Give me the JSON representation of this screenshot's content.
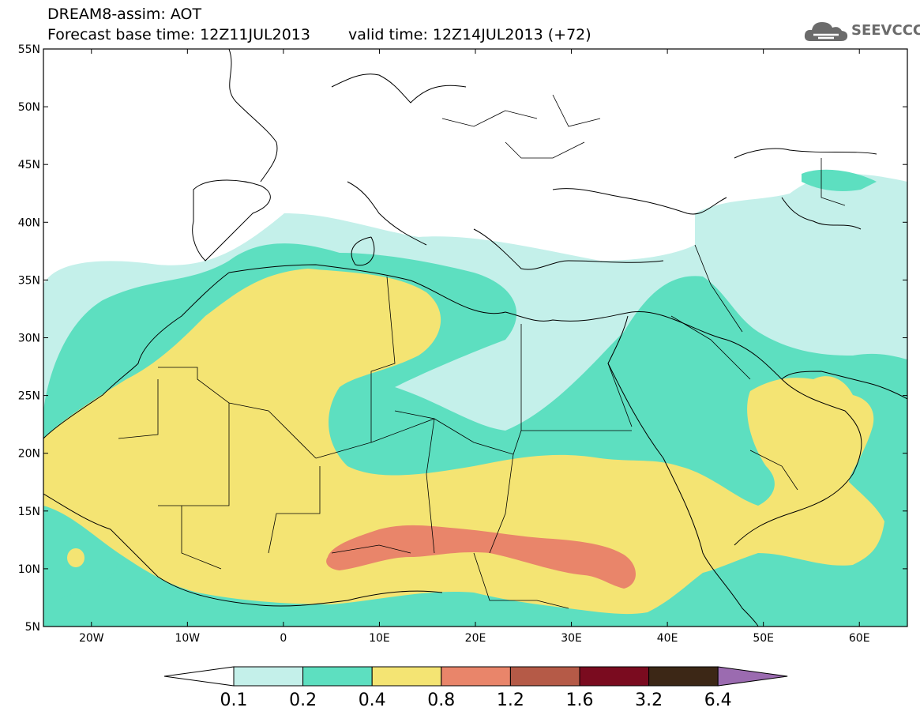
{
  "header": {
    "line1": "DREAM8-assim: AOT",
    "base_time": "Forecast base time: 12Z11JUL2013",
    "valid_time": "valid time: 12Z14JUL2013 (+72)"
  },
  "logo": {
    "text": "SEEVCCC",
    "icon": "cloud-icon"
  },
  "map": {
    "lon_range": [
      -25,
      65
    ],
    "lat_range": [
      5,
      55
    ],
    "lat_ticks": [
      "5N",
      "10N",
      "15N",
      "20N",
      "25N",
      "30N",
      "35N",
      "40N",
      "45N",
      "50N",
      "55N"
    ],
    "lon_ticks": [
      "20W",
      "10W",
      "0",
      "10E",
      "20E",
      "30E",
      "40E",
      "50E",
      "60E"
    ],
    "fill_colors": {
      "ocean_land": "#ffffff",
      "c_0.1": "#c4f0ea",
      "c_0.2": "#5ddfc0",
      "c_0.4": "#f4e473",
      "c_0.8": "#e9856a",
      "border": "#000000"
    }
  },
  "colorbar": {
    "labels": [
      "0.1",
      "0.2",
      "0.4",
      "0.8",
      "1.2",
      "1.6",
      "3.2",
      "6.4"
    ],
    "colors": [
      "#ffffff",
      "#c4f0ea",
      "#5ddfc0",
      "#f4e473",
      "#e9856a",
      "#b55a47",
      "#7a0b1f",
      "#3c2716",
      "#9b6bb0"
    ]
  }
}
